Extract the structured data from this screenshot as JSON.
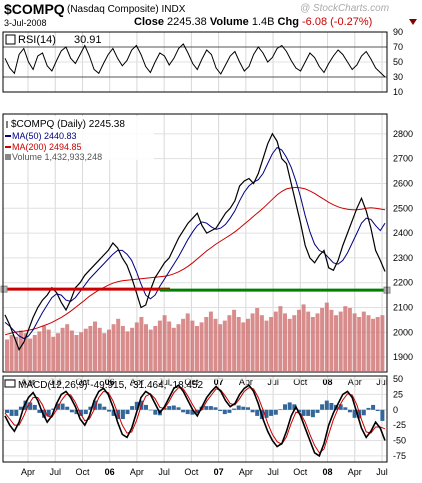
{
  "header": {
    "symbol": "$COMPQ",
    "name": "(Nasdaq Composite) INDX",
    "date": "3-Jul-2008",
    "close_label": "Close",
    "close_value": "2245.38",
    "volume_label": "Volume",
    "volume_value": "1.4B",
    "chg_label": "Chg",
    "chg_value": "-6.08 (-0.27%)",
    "watermark": "@ StockCharts.com"
  },
  "chart_data": [
    {
      "type": "line",
      "panel": "rsi",
      "title": "RSI(14)",
      "last_value": "30.91",
      "ylim": [
        10,
        90
      ],
      "y_ticks": [
        "90",
        "70",
        "50",
        "30",
        "10"
      ],
      "reference_lines": [
        70,
        30
      ],
      "series": [
        {
          "name": "RSI(14)",
          "color": "#000000",
          "values": [
            55,
            42,
            35,
            60,
            68,
            50,
            40,
            58,
            62,
            45,
            38,
            52,
            65,
            70,
            55,
            48,
            60,
            72,
            58,
            40,
            35,
            48,
            60,
            68,
            55,
            45,
            52,
            66,
            72,
            60,
            44,
            36,
            50,
            62,
            58,
            46,
            55,
            68,
            74,
            62,
            48,
            40,
            54,
            66,
            60,
            42,
            34,
            46,
            58,
            64,
            50,
            38,
            44,
            60,
            70,
            62,
            50,
            56,
            68,
            72,
            64,
            52,
            42,
            38,
            50,
            62,
            56,
            44,
            36,
            48,
            58,
            66,
            60,
            50,
            40,
            46,
            58,
            64,
            54,
            42,
            36,
            30
          ]
        }
      ]
    },
    {
      "type": "line",
      "panel": "price",
      "title": "$COMPQ (Daily) 2245.38",
      "ylim": [
        1840,
        2880
      ],
      "y_ticks": [
        "2800",
        "2700",
        "2600",
        "2500",
        "2400",
        "2300",
        "2200",
        "2100",
        "2000",
        "1900"
      ],
      "x_ticks": [
        "Apr",
        "Jul",
        "Oct",
        "06",
        "Apr",
        "Jul",
        "Oct",
        "07",
        "Apr",
        "Jul",
        "Oct",
        "08",
        "Apr",
        "Jul"
      ],
      "horizontal_lines": [
        {
          "value": 2170,
          "color": "#cc0000"
        },
        {
          "value": 2170,
          "color": "#008000"
        }
      ],
      "legend": [
        {
          "label": "MA(50) 2440.83",
          "color": "#000080"
        },
        {
          "label": "MA(200) 2494.85",
          "color": "#cc0000"
        },
        {
          "label": "Volume 1,432,933,248",
          "color": "#555555"
        }
      ],
      "series": [
        {
          "name": "$COMPQ",
          "color": "#000000",
          "values": [
            2070,
            2030,
            1980,
            1930,
            1960,
            2010,
            2060,
            2100,
            2130,
            2150,
            2180,
            2160,
            2120,
            2090,
            2130,
            2180,
            2200,
            2230,
            2250,
            2270,
            2290,
            2310,
            2330,
            2360,
            2340,
            2300,
            2270,
            2220,
            2160,
            2100,
            2110,
            2170,
            2220,
            2250,
            2280,
            2300,
            2340,
            2380,
            2410,
            2440,
            2460,
            2480,
            2430,
            2400,
            2410,
            2420,
            2450,
            2480,
            2500,
            2530,
            2590,
            2610,
            2620,
            2600,
            2640,
            2700,
            2760,
            2800,
            2770,
            2700,
            2680,
            2600,
            2520,
            2440,
            2350,
            2300,
            2280,
            2310,
            2330,
            2260,
            2250,
            2290,
            2350,
            2400,
            2450,
            2500,
            2540,
            2490,
            2420,
            2330,
            2290,
            2245
          ]
        },
        {
          "name": "MA(50)",
          "color": "#000080",
          "values": [
            2040,
            2025,
            2005,
            1985,
            1975,
            1985,
            2010,
            2045,
            2080,
            2110,
            2140,
            2155,
            2150,
            2130,
            2125,
            2140,
            2165,
            2190,
            2215,
            2235,
            2255,
            2275,
            2295,
            2315,
            2330,
            2330,
            2315,
            2290,
            2245,
            2195,
            2150,
            2135,
            2150,
            2185,
            2215,
            2245,
            2275,
            2305,
            2340,
            2375,
            2405,
            2430,
            2445,
            2440,
            2425,
            2415,
            2420,
            2435,
            2460,
            2490,
            2530,
            2565,
            2590,
            2605,
            2615,
            2640,
            2680,
            2720,
            2745,
            2735,
            2705,
            2665,
            2610,
            2545,
            2470,
            2405,
            2355,
            2330,
            2320,
            2300,
            2280,
            2275,
            2290,
            2320,
            2360,
            2400,
            2440,
            2460,
            2455,
            2430,
            2410,
            2440
          ]
        },
        {
          "name": "MA(200)",
          "color": "#cc0000",
          "values": [
            1990,
            1995,
            2000,
            2003,
            2005,
            2008,
            2012,
            2018,
            2025,
            2032,
            2040,
            2050,
            2060,
            2072,
            2085,
            2100,
            2115,
            2130,
            2145,
            2158,
            2170,
            2180,
            2190,
            2198,
            2204,
            2208,
            2210,
            2212,
            2214,
            2216,
            2218,
            2220,
            2222,
            2224,
            2226,
            2230,
            2236,
            2244,
            2254,
            2266,
            2280,
            2296,
            2312,
            2328,
            2342,
            2356,
            2368,
            2380,
            2392,
            2405,
            2420,
            2436,
            2452,
            2468,
            2484,
            2500,
            2518,
            2536,
            2554,
            2568,
            2578,
            2582,
            2584,
            2582,
            2578,
            2570,
            2560,
            2548,
            2536,
            2524,
            2514,
            2506,
            2500,
            2496,
            2494,
            2494,
            2496,
            2500,
            2502,
            2500,
            2497,
            2494
          ]
        }
      ]
    },
    {
      "type": "bar",
      "panel": "volume",
      "series": [
        {
          "name": "Volume",
          "color": "#cc6666",
          "values": [
            0.35,
            0.4,
            0.38,
            0.45,
            0.42,
            0.36,
            0.4,
            0.44,
            0.5,
            0.46,
            0.38,
            0.42,
            0.48,
            0.52,
            0.45,
            0.4,
            0.43,
            0.47,
            0.5,
            0.55,
            0.48,
            0.42,
            0.46,
            0.52,
            0.58,
            0.5,
            0.44,
            0.48,
            0.54,
            0.6,
            0.52,
            0.46,
            0.5,
            0.56,
            0.62,
            0.55,
            0.48,
            0.52,
            0.58,
            0.64,
            0.56,
            0.5,
            0.54,
            0.6,
            0.66,
            0.58,
            0.52,
            0.56,
            0.62,
            0.68,
            0.6,
            0.54,
            0.58,
            0.64,
            0.7,
            0.62,
            0.56,
            0.6,
            0.66,
            0.72,
            0.64,
            0.58,
            0.62,
            0.68,
            0.74,
            0.66,
            0.6,
            0.64,
            0.7,
            0.76,
            0.68,
            0.62,
            0.66,
            0.72,
            0.7,
            0.64,
            0.6,
            0.66,
            0.62,
            0.58,
            0.6,
            0.62
          ]
        }
      ]
    },
    {
      "type": "line",
      "panel": "macd",
      "title": "MACD(12,26,9) -49.915, -31.464, -18.452",
      "ylim": [
        -85,
        55
      ],
      "y_ticks": [
        "50",
        "25",
        "0",
        "-25",
        "-50",
        "-75"
      ],
      "x_ticks": [
        "Apr",
        "Jul",
        "Oct",
        "06",
        "Apr",
        "Jul",
        "Oct",
        "07",
        "Apr",
        "Jul",
        "Oct",
        "08",
        "Apr",
        "Jul"
      ],
      "series": [
        {
          "name": "MACD",
          "color": "#000000",
          "values": [
            -10,
            -25,
            -35,
            -20,
            5,
            20,
            28,
            15,
            -5,
            -20,
            -10,
            10,
            25,
            30,
            20,
            5,
            -15,
            -25,
            -10,
            15,
            30,
            35,
            25,
            5,
            -20,
            -40,
            -45,
            -30,
            -5,
            20,
            30,
            25,
            10,
            -5,
            5,
            20,
            35,
            40,
            30,
            15,
            0,
            -10,
            5,
            20,
            30,
            38,
            30,
            15,
            5,
            10,
            25,
            35,
            40,
            30,
            10,
            -15,
            -35,
            -50,
            -60,
            -55,
            -35,
            -10,
            5,
            -10,
            -30,
            -50,
            -70,
            -75,
            -55,
            -25,
            -5,
            10,
            25,
            30,
            20,
            -5,
            -30,
            -45,
            -35,
            -20,
            -30,
            -50
          ]
        },
        {
          "name": "Signal",
          "color": "#cc0000",
          "values": [
            -5,
            -15,
            -25,
            -25,
            -10,
            8,
            20,
            20,
            8,
            -10,
            -12,
            0,
            15,
            25,
            24,
            12,
            -5,
            -18,
            -15,
            0,
            20,
            30,
            28,
            15,
            -5,
            -25,
            -38,
            -36,
            -18,
            5,
            22,
            26,
            18,
            4,
            2,
            14,
            28,
            36,
            34,
            22,
            8,
            -4,
            0,
            14,
            24,
            34,
            32,
            22,
            10,
            8,
            18,
            30,
            36,
            34,
            20,
            0,
            -22,
            -40,
            -52,
            -56,
            -44,
            -22,
            -4,
            -6,
            -20,
            -40,
            -58,
            -70,
            -64,
            -40,
            -16,
            2,
            16,
            26,
            24,
            8,
            -16,
            -36,
            -38,
            -28,
            -28,
            -31
          ]
        },
        {
          "name": "Histogram",
          "color": "#336699",
          "values": [
            -5,
            -10,
            -10,
            5,
            15,
            12,
            8,
            -5,
            -13,
            -10,
            2,
            10,
            10,
            5,
            -4,
            -7,
            -10,
            -7,
            5,
            15,
            10,
            5,
            -3,
            -10,
            -15,
            -15,
            -7,
            6,
            13,
            15,
            8,
            -1,
            -8,
            -9,
            3,
            6,
            7,
            4,
            -4,
            -7,
            -8,
            -6,
            5,
            6,
            6,
            4,
            -2,
            -7,
            -5,
            2,
            7,
            5,
            4,
            -4,
            -10,
            -15,
            -13,
            -10,
            -8,
            1,
            9,
            12,
            9,
            -4,
            -10,
            -10,
            -12,
            -5,
            9,
            15,
            11,
            8,
            9,
            4,
            -4,
            -13,
            -14,
            -9,
            3,
            8,
            -2,
            -18
          ]
        }
      ]
    }
  ]
}
